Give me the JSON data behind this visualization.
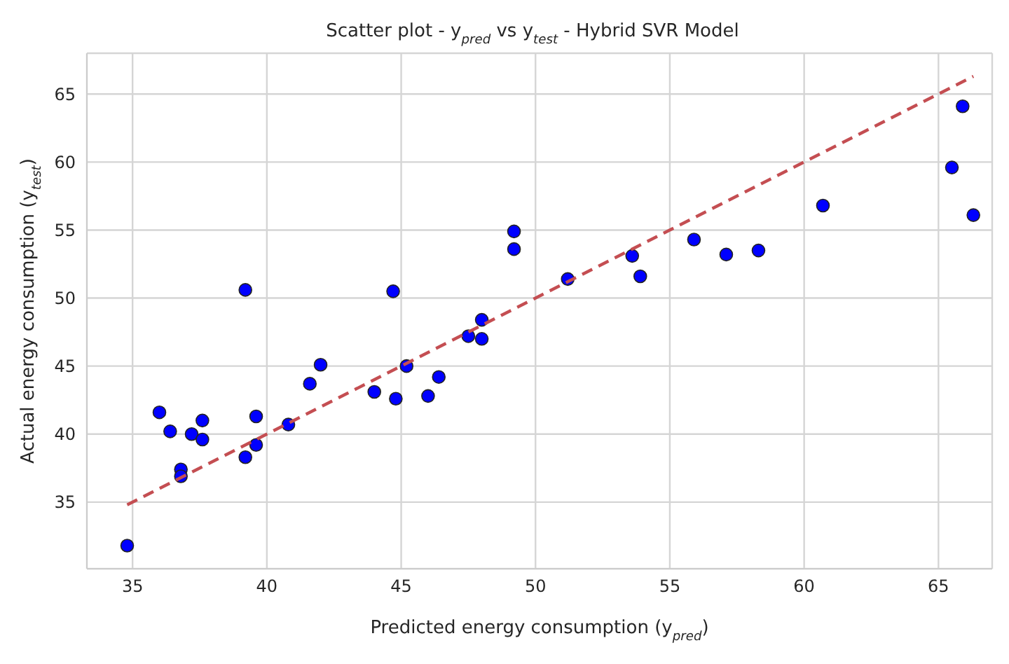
{
  "chart_data": {
    "type": "scatter",
    "title": "Scatter plot - y$_{pred}$ vs y$_{test}$ - Hybrid SVR Model",
    "xlabel": "Predicted energy consumption (y$_{pred}$)",
    "ylabel": "Actual energy consumption (y$_{test}$)",
    "xlim": [
      33.3,
      67.0
    ],
    "ylim": [
      30.1,
      68.0
    ],
    "xticks": [
      35,
      40,
      45,
      50,
      55,
      60,
      65
    ],
    "yticks": [
      35,
      40,
      45,
      50,
      55,
      60,
      65
    ],
    "grid": true,
    "marker": "circle",
    "series": [
      {
        "color": "#0000ff",
        "x": [
          34.8,
          36.0,
          36.4,
          37.2,
          37.6,
          37.6,
          36.8,
          36.8,
          39.6,
          39.6,
          39.2,
          39.2,
          40.8,
          41.6,
          42.0,
          44.0,
          44.7,
          44.8,
          45.2,
          46.0,
          46.4,
          47.5,
          48.0,
          48.0,
          49.2,
          49.2,
          51.2,
          53.6,
          53.9,
          55.9,
          57.1,
          58.3,
          60.7,
          65.5,
          65.9,
          66.3
        ],
        "values": [
          31.8,
          41.6,
          40.2,
          40.0,
          41.0,
          39.6,
          37.4,
          36.9,
          41.3,
          39.2,
          38.3,
          50.6,
          40.7,
          43.7,
          45.1,
          43.1,
          50.5,
          42.6,
          45.0,
          42.8,
          44.2,
          47.2,
          48.4,
          47.0,
          54.9,
          53.6,
          51.4,
          53.1,
          51.6,
          54.3,
          53.2,
          53.5,
          56.8,
          59.6,
          64.1,
          56.1
        ]
      },
      {
        "type": "line",
        "color": "#c44e52",
        "line_style": "dashed",
        "marker": "none",
        "x": [
          34.8,
          66.3
        ],
        "values": [
          34.8,
          66.3
        ]
      }
    ]
  }
}
